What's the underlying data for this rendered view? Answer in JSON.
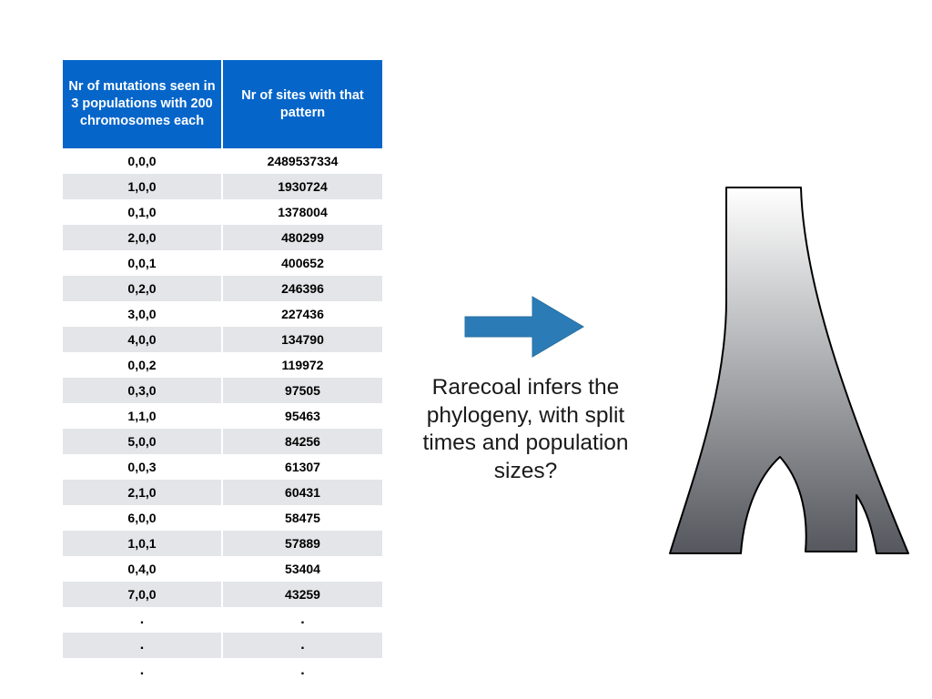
{
  "table": {
    "header": [
      "Nr of mutations seen in 3 populations with 200 chromosomes each",
      "Nr of sites with that pattern"
    ],
    "rows": [
      [
        "0,0,0",
        "2489537334"
      ],
      [
        "1,0,0",
        "1930724"
      ],
      [
        "0,1,0",
        "1378004"
      ],
      [
        "2,0,0",
        "480299"
      ],
      [
        "0,0,1",
        "400652"
      ],
      [
        "0,2,0",
        "246396"
      ],
      [
        "3,0,0",
        "227436"
      ],
      [
        "4,0,0",
        "134790"
      ],
      [
        "0,0,2",
        "119972"
      ],
      [
        "0,3,0",
        "97505"
      ],
      [
        "1,1,0",
        "95463"
      ],
      [
        "5,0,0",
        "84256"
      ],
      [
        "0,0,3",
        "61307"
      ],
      [
        "2,1,0",
        "60431"
      ],
      [
        "6,0,0",
        "58475"
      ],
      [
        "1,0,1",
        "57889"
      ],
      [
        "0,4,0",
        "53404"
      ],
      [
        "7,0,0",
        "43259"
      ],
      [
        ".",
        "."
      ],
      [
        ".",
        "."
      ],
      [
        ".",
        "."
      ]
    ]
  },
  "caption": "Rarecoal infers the phylogeny, with split times and population sizes?",
  "colors": {
    "header_bg": "#0565c9",
    "row_alt": "#e4e5e8",
    "arrow": "#2b7cb6",
    "tree_top": "#ffffff",
    "tree_bottom": "#54575d"
  }
}
